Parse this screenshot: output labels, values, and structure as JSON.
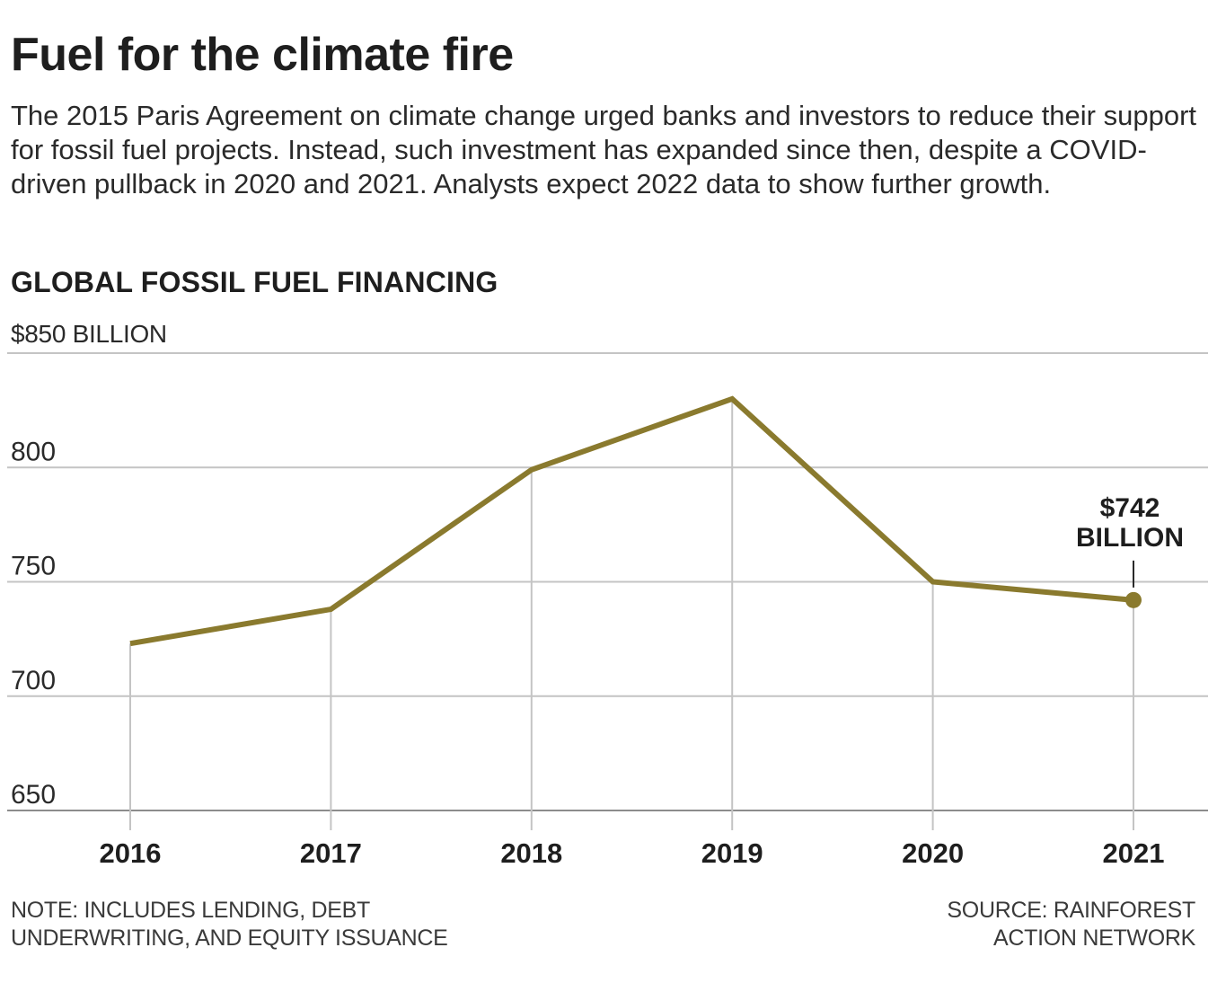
{
  "header": {
    "title": "Fuel for the climate fire",
    "subtitle": "The 2015 Paris Agreement on climate change urged banks and investors to reduce their support for fossil fuel projects. Instead, such investment has expanded since then, despite a COVID-driven pullback in 2020 and 2021. Analysts expect 2022 data to show further growth."
  },
  "chart_data": {
    "type": "line",
    "title": "GLOBAL FOSSIL FUEL FINANCING",
    "unit_label": "$850 BILLION",
    "x": [
      "2016",
      "2017",
      "2018",
      "2019",
      "2020",
      "2021"
    ],
    "series": [
      {
        "values": [
          723,
          738,
          799,
          830,
          750,
          742
        ]
      }
    ],
    "ylim": [
      650,
      850
    ],
    "yticks": [
      650,
      700,
      750,
      800,
      850
    ],
    "ytick_labels": [
      "650",
      "700",
      "750",
      "800",
      ""
    ],
    "grid": true,
    "annotation": {
      "x": "2021",
      "value": 742,
      "lines": [
        "$742",
        "BILLION"
      ]
    },
    "line_color": "#8a7a2e"
  },
  "footer": {
    "note": "NOTE: INCLUDES LENDING, DEBT UNDERWRITING, AND EQUITY ISSUANCE",
    "source": "SOURCE: RAINFOREST ACTION NETWORK"
  }
}
